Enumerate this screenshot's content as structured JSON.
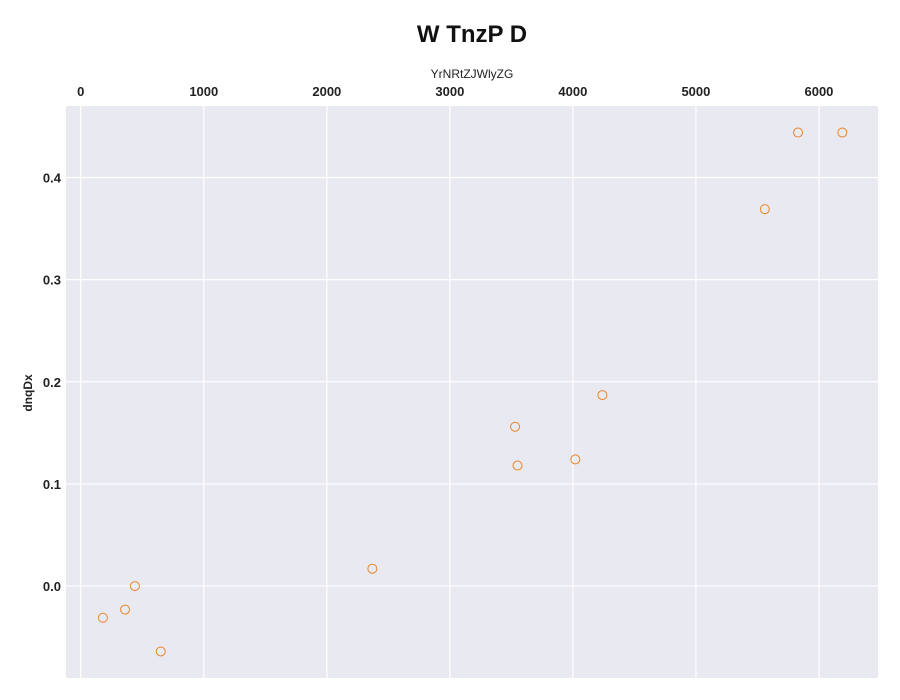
{
  "chart_data": {
    "type": "scatter",
    "title": "W TnzP D",
    "xlabel": "YrNRtZJWlyZG",
    "ylabel": "dnqDx",
    "x_axis_position": "top",
    "xlim": [
      -120,
      6480
    ],
    "ylim": [
      -0.09,
      0.47
    ],
    "xticks": [
      0,
      1000,
      2000,
      3000,
      4000,
      5000,
      6000
    ],
    "yticks": [
      0.0,
      0.1,
      0.2,
      0.3,
      0.4
    ],
    "grid": true,
    "background": "#e9e9f1",
    "marker_color": "#e8862a",
    "marker": "hollow circle",
    "series": [
      {
        "x": [
          180,
          360,
          440,
          650,
          2370,
          3530,
          3550,
          4020,
          4240,
          5560,
          5830,
          6190
        ],
        "y": [
          -0.031,
          -0.023,
          0.0,
          -0.064,
          0.017,
          0.156,
          0.118,
          0.124,
          0.187,
          0.369,
          0.444,
          0.444
        ]
      }
    ]
  }
}
